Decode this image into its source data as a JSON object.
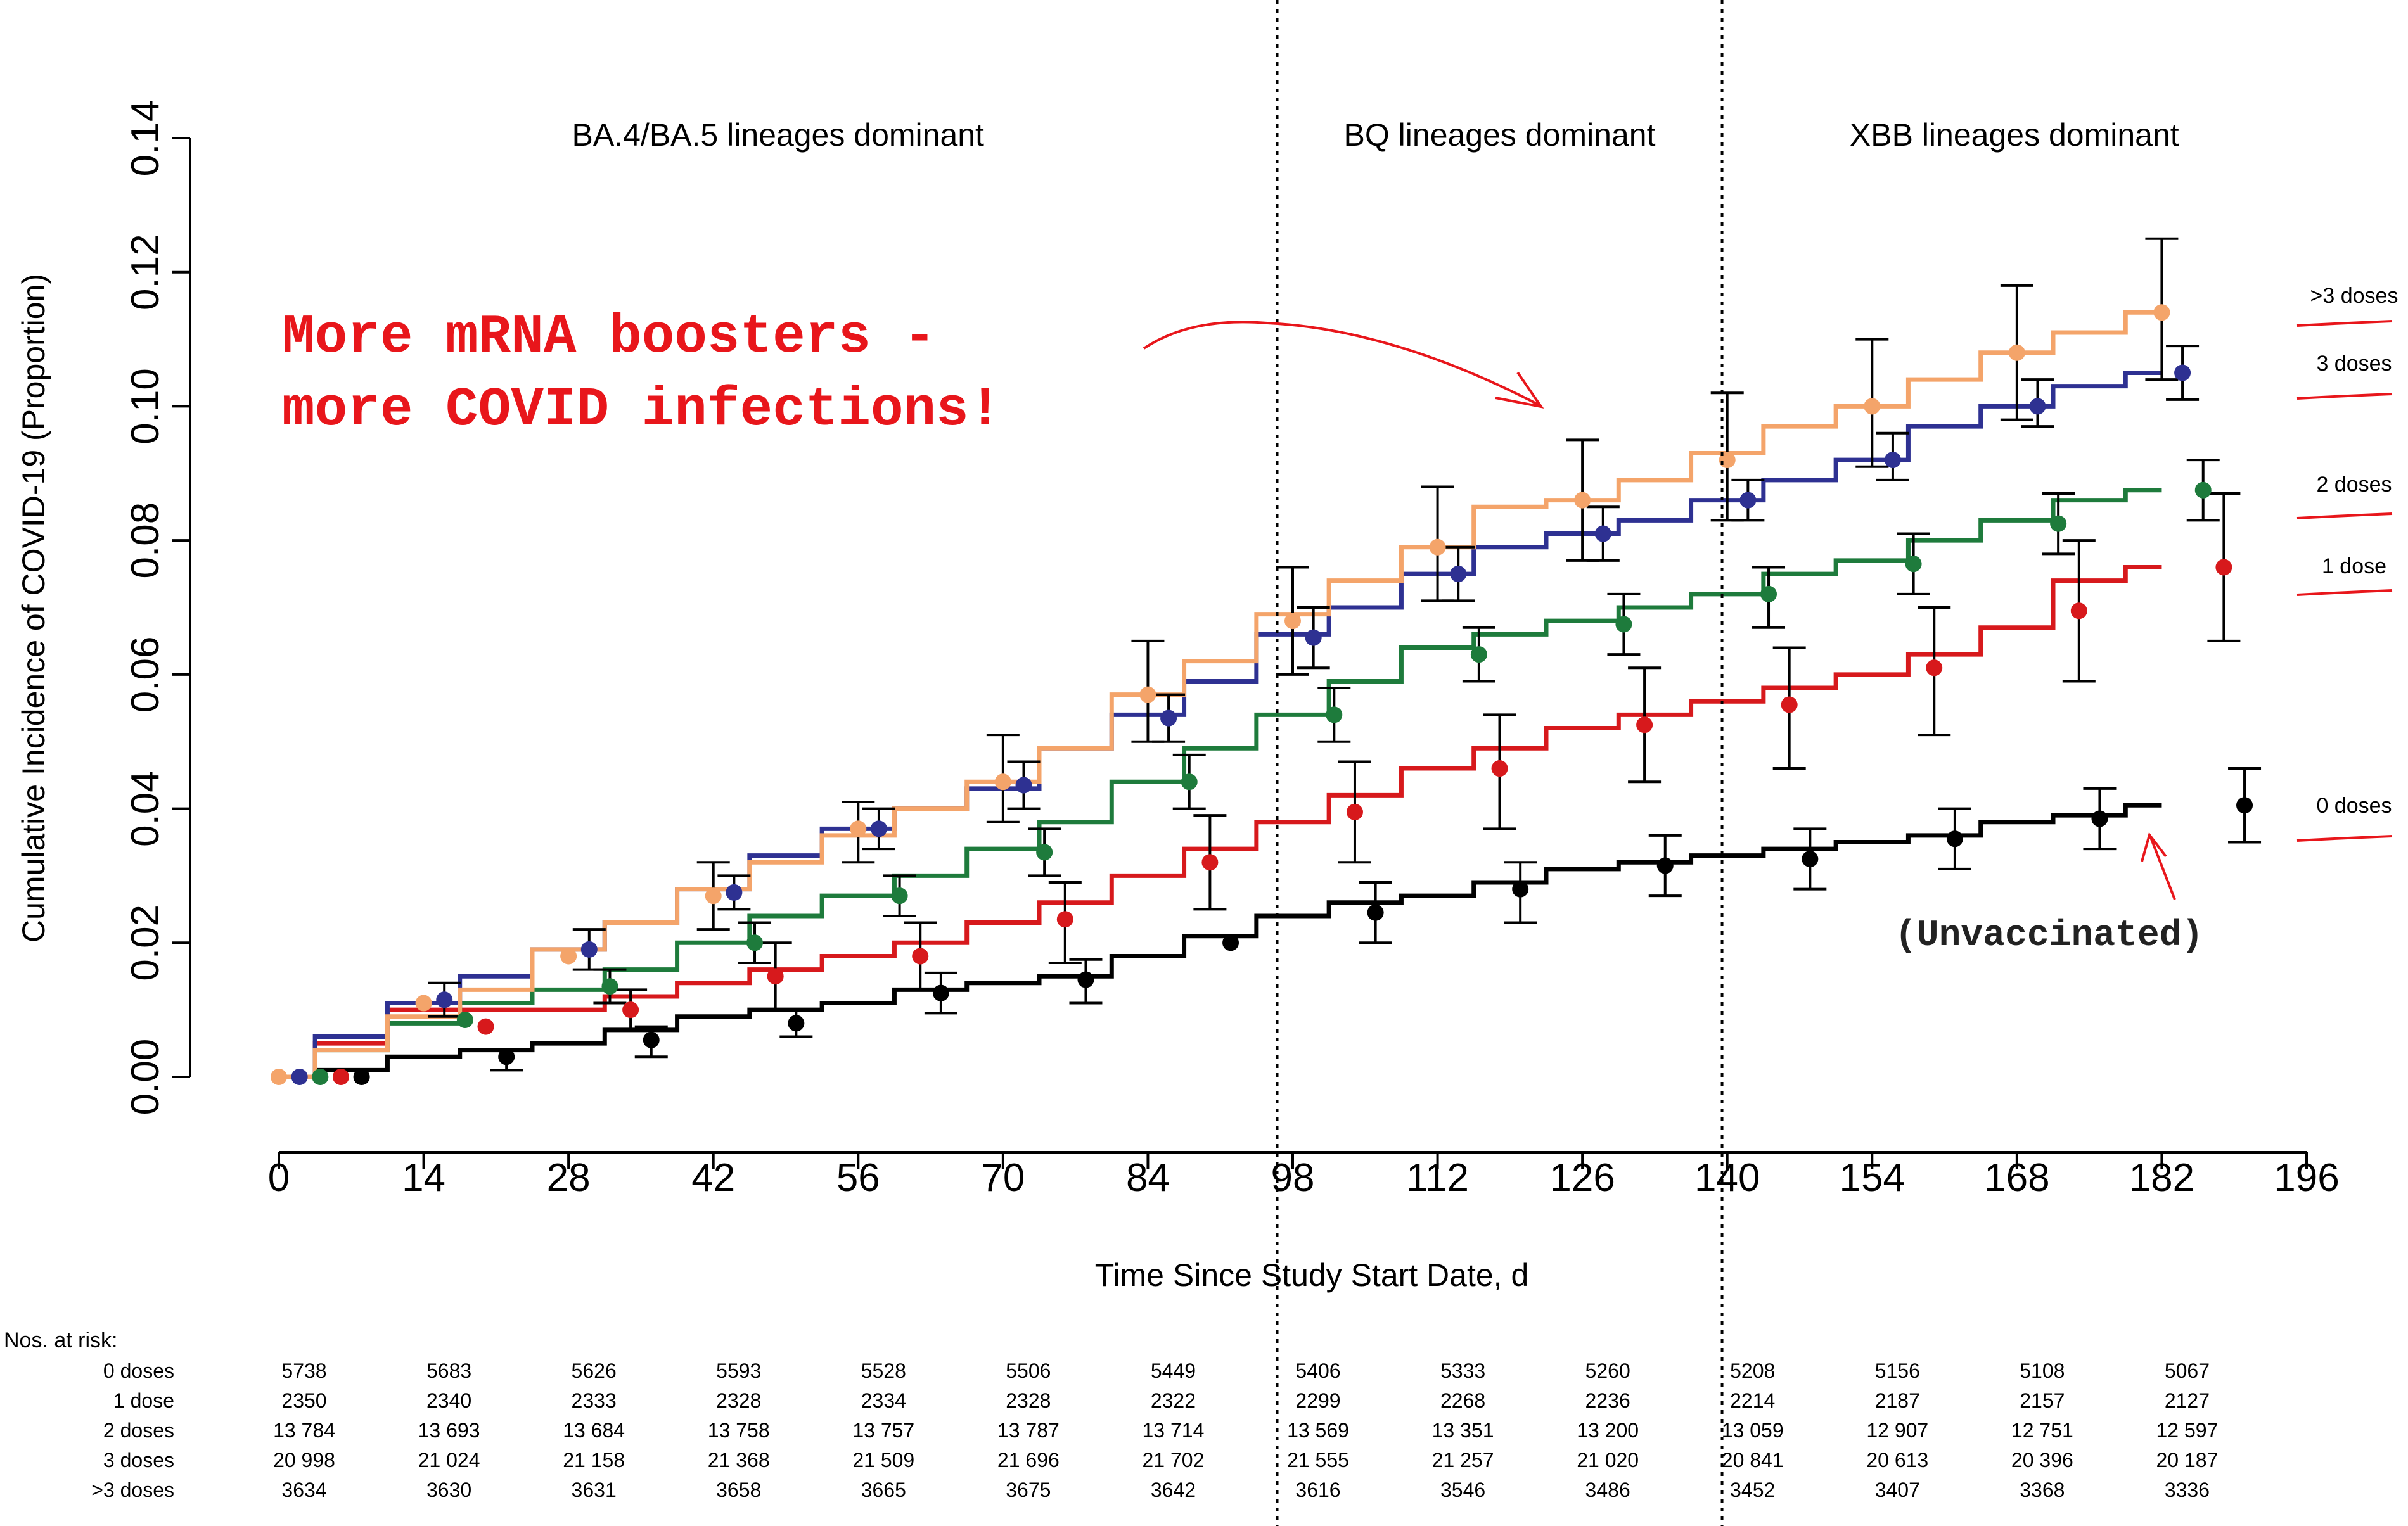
{
  "chart_data": {
    "type": "line",
    "title": "",
    "xlabel": "Time Since Study Start Date, d",
    "ylabel": "Cumulative Incidence of COVID-19 (Proportion)",
    "xlim": [
      0,
      196
    ],
    "ylim": [
      0,
      0.14
    ],
    "x_ticks": [
      "0",
      "14",
      "28",
      "42",
      "56",
      "70",
      "84",
      "98",
      "112",
      "126",
      "140",
      "154",
      "168",
      "182",
      "196"
    ],
    "y_ticks": [
      "0.00",
      "0.02",
      "0.04",
      "0.06",
      "0.08",
      "0.10",
      "0.12",
      "0.14"
    ],
    "periods": [
      {
        "label": "BA.4/BA.5 lineages dominant",
        "x_start": 0,
        "x_end": 96.5
      },
      {
        "label": "BQ lineages dominant",
        "x_start": 96.5,
        "x_end": 139.5
      },
      {
        "label": "XBB lineages dominant",
        "x_start": 139.5,
        "x_end": 196
      }
    ],
    "period_boundaries": [
      96.5,
      139.5
    ],
    "series": [
      {
        "name": ">3 doses",
        "label": ">3 doses",
        "color": "#F4A46A",
        "curve_x": [
          0,
          7,
          14,
          21,
          28,
          35,
          42,
          49,
          56,
          63,
          70,
          77,
          84,
          91,
          98,
          105,
          112,
          119,
          126,
          133,
          140,
          147,
          154,
          161,
          168,
          175,
          182
        ],
        "curve_y": [
          0,
          0.004,
          0.009,
          0.013,
          0.019,
          0.023,
          0.028,
          0.032,
          0.036,
          0.04,
          0.044,
          0.049,
          0.057,
          0.062,
          0.069,
          0.074,
          0.079,
          0.085,
          0.086,
          0.089,
          0.093,
          0.097,
          0.1,
          0.104,
          0.108,
          0.111,
          0.114
        ],
        "point_x": [
          0,
          14,
          28,
          42,
          56,
          70,
          84,
          98,
          112,
          126,
          140,
          154,
          168,
          182
        ],
        "point_y": [
          0,
          0.011,
          0.018,
          0.027,
          0.037,
          0.044,
          0.057,
          0.068,
          0.079,
          0.086,
          0.092,
          0.1,
          0.108,
          0.114
        ],
        "lower": [
          null,
          null,
          null,
          0.022,
          0.032,
          0.038,
          0.05,
          0.06,
          0.071,
          0.077,
          0.083,
          0.091,
          0.098,
          0.104
        ],
        "upper": [
          null,
          null,
          null,
          0.032,
          0.041,
          0.051,
          0.065,
          0.076,
          0.088,
          0.095,
          0.102,
          0.11,
          0.118,
          0.125
        ],
        "end_marker": {
          "x": 182,
          "y": 0.114
        }
      },
      {
        "name": "3 doses",
        "label": "3 doses",
        "color": "#2E3192",
        "curve_x": [
          0,
          7,
          14,
          21,
          28,
          35,
          42,
          49,
          56,
          63,
          70,
          77,
          84,
          91,
          98,
          105,
          112,
          119,
          126,
          133,
          140,
          147,
          154,
          161,
          168,
          175,
          182
        ],
        "curve_y": [
          0,
          0.006,
          0.011,
          0.015,
          0.019,
          0.023,
          0.028,
          0.033,
          0.037,
          0.04,
          0.043,
          0.049,
          0.054,
          0.059,
          0.066,
          0.07,
          0.075,
          0.079,
          0.081,
          0.083,
          0.086,
          0.089,
          0.092,
          0.097,
          0.1,
          0.103,
          0.105
        ],
        "point_x": [
          2,
          16,
          30,
          44,
          58,
          72,
          86,
          100,
          114,
          128,
          142,
          156,
          170,
          184
        ],
        "point_y": [
          0,
          0.0115,
          0.019,
          0.0275,
          0.037,
          0.0435,
          0.0535,
          0.0655,
          0.075,
          0.081,
          0.086,
          0.092,
          0.1,
          0.105
        ],
        "lower": [
          null,
          0.009,
          0.016,
          0.025,
          0.034,
          0.04,
          0.05,
          0.061,
          0.071,
          0.077,
          0.083,
          0.089,
          0.097,
          0.101
        ],
        "upper": [
          null,
          0.014,
          0.022,
          0.03,
          0.04,
          0.047,
          0.057,
          0.07,
          0.079,
          0.085,
          0.089,
          0.096,
          0.104,
          0.109
        ]
      },
      {
        "name": "2 doses",
        "label": "2 doses",
        "color": "#1E7B3C",
        "curve_x": [
          0,
          7,
          14,
          21,
          28,
          35,
          42,
          49,
          56,
          63,
          70,
          77,
          84,
          91,
          98,
          105,
          112,
          119,
          126,
          133,
          140,
          147,
          154,
          161,
          168,
          175,
          182
        ],
        "curve_y": [
          0,
          0.004,
          0.008,
          0.011,
          0.013,
          0.016,
          0.02,
          0.024,
          0.027,
          0.03,
          0.034,
          0.038,
          0.044,
          0.049,
          0.054,
          0.059,
          0.064,
          0.066,
          0.068,
          0.07,
          0.072,
          0.075,
          0.077,
          0.08,
          0.083,
          0.086,
          0.0875
        ],
        "point_x": [
          4,
          18,
          32,
          46,
          60,
          74,
          88,
          102,
          116,
          130,
          144,
          158,
          172,
          186
        ],
        "point_y": [
          0,
          0.0085,
          0.0135,
          0.02,
          0.027,
          0.0335,
          0.044,
          0.054,
          0.063,
          0.0675,
          0.072,
          0.0765,
          0.0825,
          0.0875
        ],
        "lower": [
          null,
          null,
          0.011,
          0.017,
          0.024,
          0.03,
          0.04,
          0.05,
          0.059,
          0.063,
          0.067,
          0.072,
          0.078,
          0.083
        ],
        "upper": [
          null,
          null,
          0.016,
          0.023,
          0.03,
          0.037,
          0.048,
          0.058,
          0.067,
          0.072,
          0.076,
          0.081,
          0.087,
          0.092
        ]
      },
      {
        "name": "1 dose",
        "label": "1 dose",
        "color": "#D7191C",
        "curve_x": [
          0,
          7,
          14,
          21,
          28,
          35,
          42,
          49,
          56,
          63,
          70,
          77,
          84,
          91,
          98,
          105,
          112,
          119,
          126,
          133,
          140,
          147,
          154,
          161,
          168,
          175,
          182
        ],
        "curve_y": [
          0,
          0.005,
          0.01,
          0.01,
          0.01,
          0.012,
          0.014,
          0.016,
          0.018,
          0.02,
          0.023,
          0.026,
          0.03,
          0.034,
          0.038,
          0.042,
          0.046,
          0.049,
          0.052,
          0.054,
          0.056,
          0.058,
          0.06,
          0.063,
          0.067,
          0.074,
          0.076
        ],
        "point_x": [
          6,
          20,
          34,
          48,
          62,
          76,
          90,
          104,
          118,
          132,
          146,
          160,
          174,
          188
        ],
        "point_y": [
          0,
          0.0075,
          0.01,
          0.015,
          0.018,
          0.0235,
          0.032,
          0.0395,
          0.046,
          0.0525,
          0.0555,
          0.061,
          0.0695,
          0.076
        ],
        "lower": [
          null,
          null,
          0.007,
          0.01,
          0.013,
          0.017,
          0.025,
          0.032,
          0.037,
          0.044,
          0.046,
          0.051,
          0.059,
          0.065
        ],
        "upper": [
          null,
          null,
          0.013,
          0.02,
          0.023,
          0.029,
          0.039,
          0.047,
          0.054,
          0.061,
          0.064,
          0.07,
          0.08,
          0.087
        ]
      },
      {
        "name": "0 doses",
        "label": "0 doses",
        "color": "#000000",
        "curve_x": [
          0,
          7,
          14,
          21,
          28,
          35,
          42,
          49,
          56,
          63,
          70,
          77,
          84,
          91,
          98,
          105,
          112,
          119,
          126,
          133,
          140,
          147,
          154,
          161,
          168,
          175,
          182
        ],
        "curve_y": [
          0,
          0.001,
          0.003,
          0.004,
          0.005,
          0.007,
          0.009,
          0.01,
          0.011,
          0.013,
          0.014,
          0.015,
          0.018,
          0.021,
          0.024,
          0.026,
          0.027,
          0.029,
          0.031,
          0.032,
          0.033,
          0.034,
          0.035,
          0.036,
          0.038,
          0.039,
          0.0405
        ],
        "point_x": [
          8,
          22,
          36,
          50,
          64,
          78,
          92,
          106,
          120,
          134,
          148,
          162,
          176,
          190
        ],
        "point_y": [
          0,
          0.003,
          0.0055,
          0.008,
          0.0125,
          0.0145,
          0.02,
          0.0245,
          0.028,
          0.0315,
          0.0325,
          0.0355,
          0.0385,
          0.0405
        ],
        "lower": [
          null,
          0.001,
          0.003,
          0.006,
          0.0095,
          0.011,
          null,
          0.02,
          0.023,
          0.027,
          0.028,
          0.031,
          0.034,
          0.035
        ],
        "upper": [
          null,
          0.004,
          0.0075,
          0.01,
          0.0155,
          0.0175,
          null,
          0.029,
          0.032,
          0.036,
          0.037,
          0.04,
          0.043,
          0.046
        ]
      }
    ],
    "annotations": {
      "boosters_text_line1": "More mRNA boosters -",
      "boosters_text_line2": "more COVID infections!",
      "unvaccinated": "(Unvaccinated)"
    },
    "at_risk": {
      "title": "Nos. at risk:",
      "rows": [
        {
          "label": "0 doses",
          "color": "#000000",
          "values": [
            "5738",
            "5683",
            "5626",
            "5593",
            "5528",
            "5506",
            "5449",
            "5406",
            "5333",
            "5260",
            "5208",
            "5156",
            "5108",
            "5067"
          ]
        },
        {
          "label": "1 dose",
          "color": "#D7191C",
          "values": [
            "2350",
            "2340",
            "2333",
            "2328",
            "2334",
            "2328",
            "2322",
            "2299",
            "2268",
            "2236",
            "2214",
            "2187",
            "2157",
            "2127"
          ]
        },
        {
          "label": "2 doses",
          "color": "#1E7B3C",
          "values": [
            "13 784",
            "13 693",
            "13 684",
            "13 758",
            "13 757",
            "13 787",
            "13 714",
            "13 569",
            "13 351",
            "13 200",
            "13 059",
            "12 907",
            "12 751",
            "12 597"
          ]
        },
        {
          "label": "3 doses",
          "color": "#2E3192",
          "values": [
            "20 998",
            "21 024",
            "21 158",
            "21 368",
            "21 509",
            "21 696",
            "21 702",
            "21 555",
            "21 257",
            "21 020",
            "20 841",
            "20 613",
            "20 396",
            "20 187"
          ]
        },
        {
          "label": ">3 doses",
          "color": "#F4A46A",
          "values": [
            "3634",
            "3630",
            "3631",
            "3658",
            "3665",
            "3675",
            "3642",
            "3616",
            "3546",
            "3486",
            "3452",
            "3407",
            "3368",
            "3336"
          ]
        }
      ]
    }
  }
}
